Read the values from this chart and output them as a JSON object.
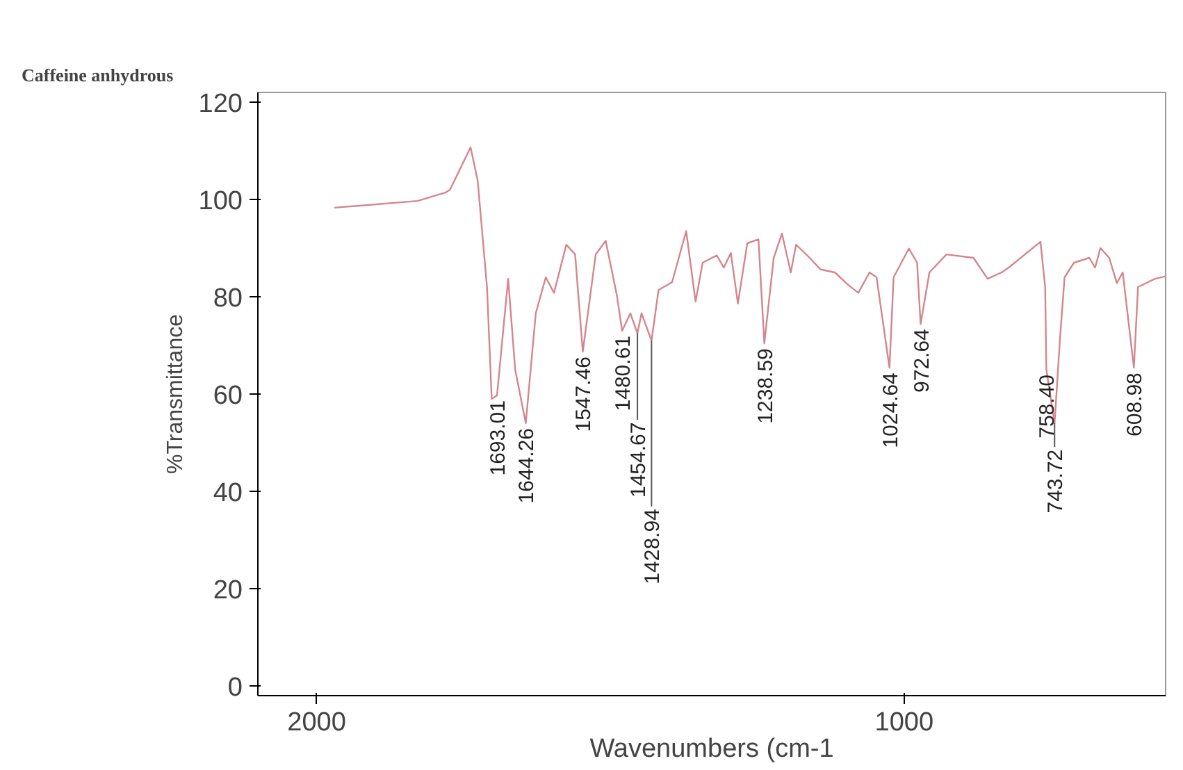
{
  "chart_data": {
    "type": "line",
    "title": "Caffeine anhydrous",
    "xlabel": "Wavenumbers (cm-1",
    "ylabel": "%Transmittance",
    "xlim": [
      2100,
      555
    ],
    "ylim": [
      -2,
      122
    ],
    "xticks": [
      2000,
      1000
    ],
    "yticks": [
      0,
      20,
      40,
      60,
      80,
      100,
      120
    ],
    "grid": false,
    "marker": "none",
    "line_style": "solid",
    "series": [
      {
        "color": "#d4868e",
        "x": [
          1970,
          1828,
          1781,
          1773,
          1738,
          1726,
          1710,
          1702,
          1693,
          1674,
          1662,
          1644,
          1627,
          1610,
          1596,
          1575,
          1560,
          1547,
          1525,
          1508,
          1489,
          1480,
          1466,
          1454,
          1447,
          1430,
          1418,
          1395,
          1371,
          1355,
          1343,
          1319,
          1307,
          1295,
          1283,
          1267,
          1248,
          1238,
          1222,
          1208,
          1193,
          1184,
          1165,
          1142,
          1118,
          1094,
          1078,
          1059,
          1047,
          1025,
          1018,
          992,
          978,
          972,
          957,
          928,
          882,
          858,
          834,
          822,
          768,
          760,
          758,
          744,
          735,
          727,
          711,
          685,
          675,
          666,
          651,
          638,
          628,
          609,
          602,
          573,
          555
        ],
        "values": [
          98.3,
          99.7,
          101.4,
          102,
          110.7,
          104,
          82,
          59,
          59.7,
          83.7,
          65,
          54,
          76.6,
          84,
          80.8,
          90.7,
          88.7,
          68.7,
          88.7,
          91.5,
          80.3,
          73,
          76.6,
          72.5,
          76.6,
          71,
          81.4,
          83,
          93.5,
          79,
          87,
          88.5,
          86,
          89,
          78.6,
          91,
          91.8,
          70.4,
          88,
          93,
          85,
          90.7,
          88.5,
          85.6,
          85,
          82.3,
          80.8,
          85,
          84,
          65.4,
          84,
          89.9,
          87,
          74.4,
          85,
          88.7,
          88,
          83.7,
          85,
          86,
          91.3,
          82,
          65,
          54,
          71,
          84,
          87,
          88,
          86,
          90,
          88,
          82.8,
          85,
          65.4,
          82,
          83.7,
          84.2
        ]
      }
    ],
    "annotations": [
      {
        "text": "1693.01",
        "x": 1693,
        "y": 59.7
      },
      {
        "text": "1644.26",
        "x": 1644,
        "y": 54
      },
      {
        "text": "1547.46",
        "x": 1547,
        "y": 68.7
      },
      {
        "text": "1480.61",
        "x": 1480,
        "y": 73
      },
      {
        "text": "1454.67",
        "x": 1454,
        "y": 72.5
      },
      {
        "text": "1428.94",
        "x": 1430,
        "y": 71
      },
      {
        "text": "1238.59",
        "x": 1238,
        "y": 70.4
      },
      {
        "text": "1024.64",
        "x": 1025,
        "y": 65.4
      },
      {
        "text": "972.64",
        "x": 972,
        "y": 74.4
      },
      {
        "text": "758.40",
        "x": 758,
        "y": 65
      },
      {
        "text": "743.72",
        "x": 744,
        "y": 54
      },
      {
        "text": "608.98",
        "x": 609,
        "y": 65.4
      }
    ]
  }
}
